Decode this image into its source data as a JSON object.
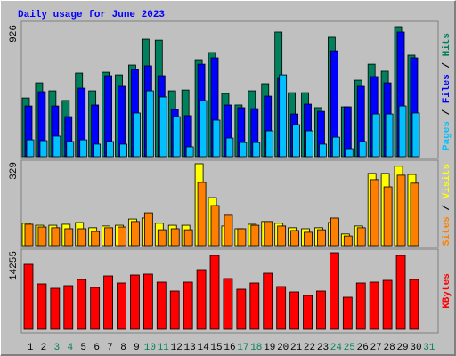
{
  "chart_data": [
    {
      "type": "bar",
      "title": "Daily usage for June 2023",
      "categories": [
        "1",
        "2",
        "3",
        "4",
        "5",
        "6",
        "7",
        "8",
        "9",
        "10",
        "11",
        "12",
        "13",
        "14",
        "15",
        "16",
        "17",
        "18",
        "19",
        "20",
        "21",
        "22",
        "23",
        "24",
        "25",
        "26",
        "27",
        "28",
        "29",
        "30",
        "31"
      ],
      "category_colors": [
        "#000000",
        "#000000",
        "#00805c",
        "#00805c",
        "#000000",
        "#000000",
        "#000000",
        "#000000",
        "#000000",
        "#00805c",
        "#00805c",
        "#000000",
        "#000000",
        "#000000",
        "#000000",
        "#000000",
        "#00805c",
        "#00805c",
        "#000000",
        "#000000",
        "#000000",
        "#000000",
        "#000000",
        "#00805c",
        "#00805c",
        "#000000",
        "#000000",
        "#000000",
        "#000000",
        "#000000",
        "#00805c"
      ],
      "legend_separator": " / ",
      "ylim": [
        0,
        926
      ],
      "yticks": [
        926
      ],
      "series": [
        {
          "name": "Hits",
          "color": "#00805c",
          "values": [
            418,
            526,
            469,
            400,
            596,
            469,
            602,
            583,
            653,
            837,
            830,
            469,
            475,
            691,
            742,
            450,
            368,
            469,
            520,
            888,
            456,
            456,
            349,
            850,
            355,
            545,
            659,
            609,
            926,
            723,
            null
          ]
        },
        {
          "name": "Files",
          "color": "#0000ff",
          "values": [
            361,
            463,
            361,
            285,
            488,
            368,
            577,
            501,
            621,
            647,
            577,
            336,
            292,
            659,
            704,
            368,
            349,
            342,
            431,
            558,
            304,
            374,
            323,
            754,
            355,
            501,
            571,
            526,
            888,
            704,
            null
          ]
        },
        {
          "name": "Pages",
          "color": "#00c0ff",
          "values": [
            120,
            114,
            146,
            108,
            120,
            89,
            108,
            89,
            311,
            469,
            425,
            285,
            70,
            399,
            260,
            133,
            101,
            101,
            184,
            583,
            228,
            184,
            89,
            139,
            57,
            108,
            304,
            304,
            361,
            311,
            null
          ]
        }
      ]
    },
    {
      "type": "bar",
      "ylim": [
        0,
        329
      ],
      "yticks": [
        329
      ],
      "series": [
        {
          "name": "Visits",
          "color": "#ffff00",
          "values": [
            90,
            82,
            82,
            86,
            93,
            72,
            79,
            82,
            107,
            111,
            90,
            82,
            82,
            329,
            193,
            79,
            68,
            86,
            97,
            90,
            72,
            68,
            72,
            93,
            47,
            79,
            290,
            290,
            319,
            286,
            null
          ]
        },
        {
          "name": "Sites",
          "color": "#ff8000",
          "values": [
            86,
            75,
            72,
            68,
            68,
            57,
            72,
            75,
            97,
            132,
            64,
            68,
            64,
            254,
            161,
            122,
            68,
            82,
            97,
            79,
            61,
            54,
            64,
            111,
            39,
            72,
            265,
            236,
            283,
            251,
            null
          ]
        }
      ]
    },
    {
      "type": "bar",
      "ylim": [
        0,
        14255
      ],
      "yticks": [
        14255
      ],
      "series": [
        {
          "name": "KBytes",
          "color": "#ff0000",
          "values": [
            12103,
            8456,
            7627,
            8124,
            9285,
            7793,
            9948,
            8622,
            10114,
            10280,
            8787,
            7129,
            8787,
            11109,
            13761,
            9451,
            7461,
            8622,
            10445,
            7958,
            6964,
            6300,
            7129,
            14255,
            5969,
            8622,
            8787,
            9119,
            13761,
            9285,
            null
          ]
        }
      ]
    }
  ]
}
